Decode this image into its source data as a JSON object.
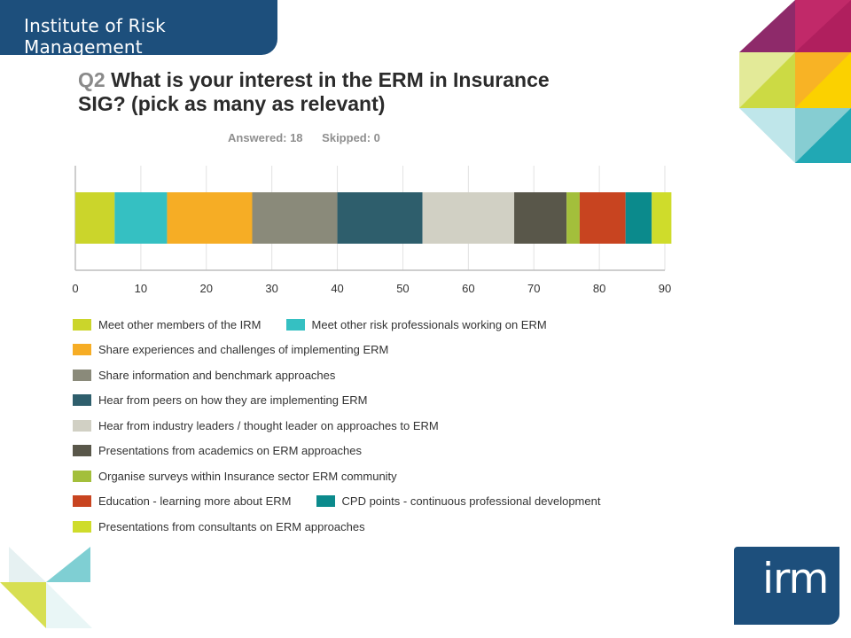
{
  "header": {
    "org_name": "Institute of Risk Management"
  },
  "question": {
    "number": "Q2",
    "text": "What is your interest in the ERM in Insurance SIG? (pick as many as relevant)"
  },
  "stats": {
    "answered": "Answered: 18",
    "skipped": "Skipped: 0"
  },
  "chart_data": {
    "type": "bar",
    "orientation": "horizontal-stacked",
    "xlim": [
      0,
      90
    ],
    "x_ticks": [
      "0",
      "10",
      "20",
      "30",
      "40",
      "50",
      "60",
      "70",
      "80",
      "90"
    ],
    "grid": true,
    "legend_placement": "bottom",
    "series": [
      {
        "name": "Meet other members of the IRM",
        "value": 6,
        "color": "#cbd52b"
      },
      {
        "name": "Meet other risk professionals working on ERM",
        "value": 8,
        "color": "#35c0c2"
      },
      {
        "name": "Share experiences and challenges of implementing ERM",
        "value": 13,
        "color": "#f6ad25"
      },
      {
        "name": "Share information and benchmark approaches",
        "value": 13,
        "color": "#8a8a7a"
      },
      {
        "name": "Hear from peers on how they are implementing ERM",
        "value": 13,
        "color": "#2e5e6c"
      },
      {
        "name": "Hear from industry leaders / thought leader on approaches to ERM",
        "value": 14,
        "color": "#d1d0c4"
      },
      {
        "name": "Presentations from academics on ERM approaches",
        "value": 8,
        "color": "#59574a"
      },
      {
        "name": "Organise surveys within Insurance sector ERM community",
        "value": 2,
        "color": "#a3bf3b"
      },
      {
        "name": "Education - learning more about ERM",
        "value": 7,
        "color": "#c84420"
      },
      {
        "name": "CPD points - continuous professional development",
        "value": 4,
        "color": "#0b8a8c"
      },
      {
        "name": "Presentations from consultants on ERM approaches",
        "value": 3,
        "color": "#cfdc2b"
      }
    ]
  },
  "legend_rows": [
    [
      0,
      1
    ],
    [
      2
    ],
    [
      3
    ],
    [
      4
    ],
    [
      5
    ],
    [
      6
    ],
    [
      7
    ],
    [
      8,
      9
    ],
    [
      10
    ]
  ],
  "logo": {
    "text": "irm"
  }
}
